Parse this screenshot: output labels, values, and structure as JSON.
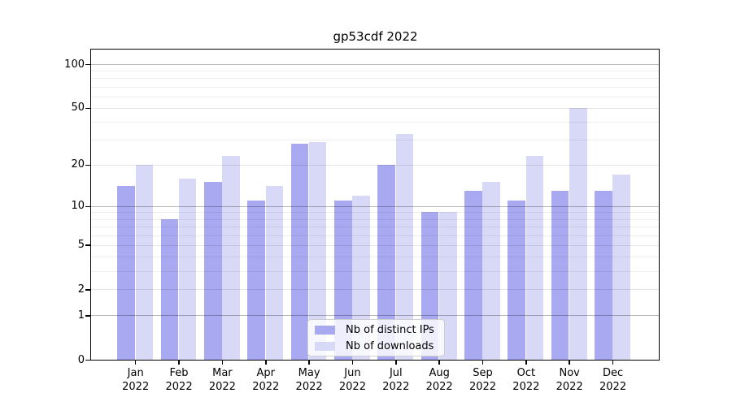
{
  "page": {
    "background": "#ffffff"
  },
  "chart_data": {
    "type": "bar",
    "title": "gp53cdf 2022",
    "categories": [
      {
        "month": "Jan",
        "year": "2022"
      },
      {
        "month": "Feb",
        "year": "2022"
      },
      {
        "month": "Mar",
        "year": "2022"
      },
      {
        "month": "Apr",
        "year": "2022"
      },
      {
        "month": "May",
        "year": "2022"
      },
      {
        "month": "Jun",
        "year": "2022"
      },
      {
        "month": "Jul",
        "year": "2022"
      },
      {
        "month": "Aug",
        "year": "2022"
      },
      {
        "month": "Sep",
        "year": "2022"
      },
      {
        "month": "Oct",
        "year": "2022"
      },
      {
        "month": "Nov",
        "year": "2022"
      },
      {
        "month": "Dec",
        "year": "2022"
      }
    ],
    "series": [
      {
        "name": "Nb of distinct IPs",
        "color": "#a9a9f1",
        "values": [
          14,
          8,
          15,
          11,
          28,
          11,
          20,
          9,
          13,
          11,
          13,
          13
        ]
      },
      {
        "name": "Nb of downloads",
        "color": "#d8d8f7",
        "values": [
          20,
          16,
          23,
          14,
          29,
          12,
          33,
          9,
          15,
          23,
          50,
          17
        ]
      }
    ],
    "xlabel": "",
    "ylabel": "",
    "yscale": "log1p",
    "ylim": [
      0,
      126
    ],
    "yticks": [
      0,
      1,
      2,
      5,
      10,
      20,
      50,
      100
    ],
    "yticks_decade": [
      1,
      10,
      100
    ],
    "yticks_minor": [
      3,
      4,
      6,
      7,
      8,
      9,
      30,
      40,
      60,
      70,
      80,
      90
    ],
    "grid": true,
    "legend": {
      "position": "inside-bottom-center"
    }
  }
}
